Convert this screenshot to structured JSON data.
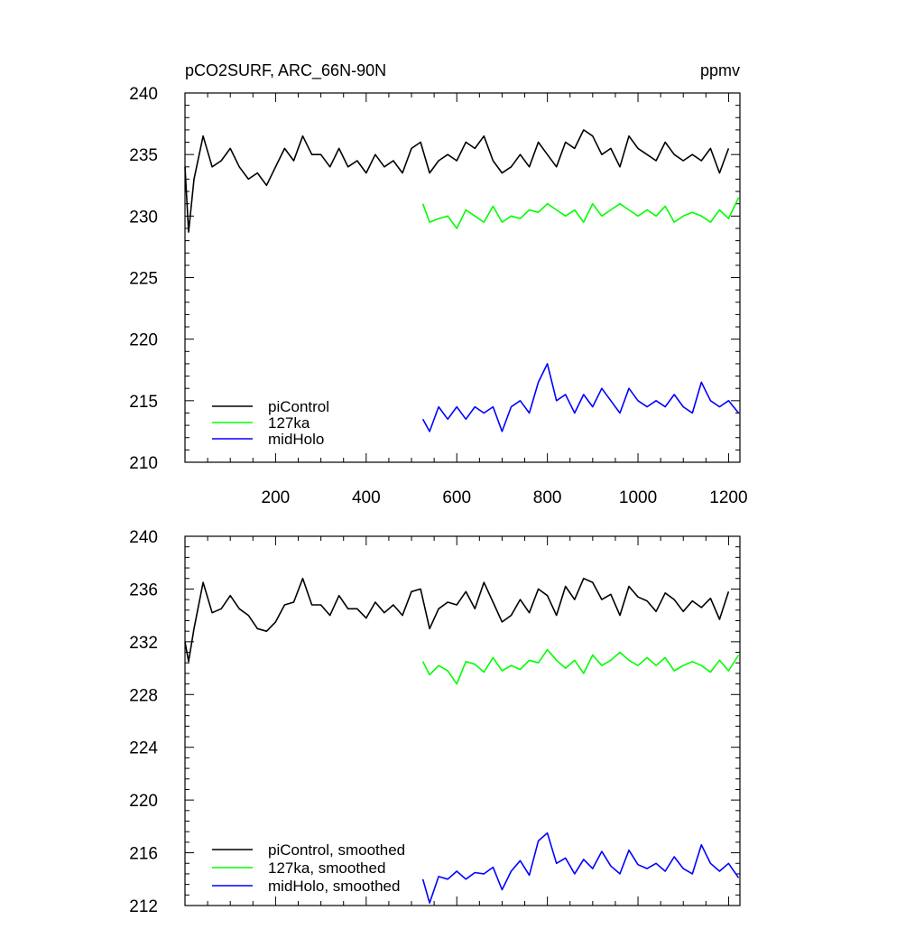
{
  "chart_data": [
    {
      "type": "line",
      "title": "pCO2SURF, ARC_66N-90N",
      "units": "ppmv",
      "xlim": [
        0,
        1225
      ],
      "ylim": [
        210,
        240
      ],
      "xticks": [
        200,
        400,
        600,
        800,
        1000,
        1200
      ],
      "xticklabels": [
        "200",
        "400",
        "600",
        "800",
        "1000",
        "1200"
      ],
      "yticks": [
        210,
        215,
        220,
        225,
        230,
        235,
        240
      ],
      "yticklabels": [
        "210",
        "215",
        "220",
        "225",
        "230",
        "235",
        "240"
      ],
      "legend_position": "bottom-left",
      "series": [
        {
          "name": "piControl",
          "color": "#000000",
          "x": [
            0,
            8,
            20,
            40,
            60,
            80,
            100,
            120,
            140,
            160,
            180,
            200,
            220,
            240,
            260,
            280,
            300,
            320,
            340,
            360,
            380,
            400,
            420,
            440,
            460,
            480,
            500,
            520,
            540,
            560,
            580,
            600,
            620,
            640,
            660,
            680,
            700,
            720,
            740,
            760,
            780,
            800,
            820,
            840,
            860,
            880,
            900,
            920,
            940,
            960,
            980,
            1000,
            1020,
            1040,
            1060,
            1080,
            1100,
            1120,
            1140,
            1160,
            1180,
            1200
          ],
          "y": [
            234,
            228.7,
            233,
            236.5,
            234,
            234.5,
            235.5,
            234,
            233,
            233.5,
            232.5,
            234,
            235.5,
            234.5,
            236.5,
            235,
            235,
            234,
            235.5,
            234,
            234.5,
            233.5,
            235,
            234,
            234.5,
            233.5,
            235.5,
            236,
            233.5,
            234.5,
            235,
            234.5,
            236,
            235.5,
            236.5,
            234.5,
            233.5,
            234,
            235,
            234,
            236,
            235,
            234,
            236,
            235.5,
            237,
            236.5,
            235,
            235.5,
            234,
            236.5,
            235.5,
            235,
            234.5,
            236,
            235,
            234.5,
            235,
            234.5,
            235.5,
            233.5,
            235.5
          ]
        },
        {
          "name": "127ka",
          "color": "#00ff00",
          "x": [
            525,
            540,
            560,
            580,
            600,
            620,
            640,
            660,
            680,
            700,
            720,
            740,
            760,
            780,
            800,
            820,
            840,
            860,
            880,
            900,
            920,
            940,
            960,
            980,
            1000,
            1020,
            1040,
            1060,
            1080,
            1100,
            1120,
            1140,
            1160,
            1180,
            1200,
            1222
          ],
          "y": [
            231,
            229.5,
            229.8,
            230,
            229,
            230.5,
            230,
            229.5,
            230.8,
            229.5,
            230,
            229.8,
            230.5,
            230.3,
            231,
            230.5,
            230,
            230.5,
            229.5,
            231,
            230,
            230.5,
            231,
            230.5,
            230,
            230.5,
            230,
            230.8,
            229.5,
            230,
            230.3,
            230,
            229.5,
            230.5,
            229.8,
            231.5
          ]
        },
        {
          "name": "midHolo",
          "color": "#0000ff",
          "x": [
            525,
            540,
            560,
            580,
            600,
            620,
            640,
            660,
            680,
            700,
            720,
            740,
            760,
            780,
            800,
            820,
            840,
            860,
            880,
            900,
            920,
            940,
            960,
            980,
            1000,
            1020,
            1040,
            1060,
            1080,
            1100,
            1120,
            1140,
            1160,
            1180,
            1200,
            1222
          ],
          "y": [
            213.5,
            212.5,
            214.5,
            213.5,
            214.5,
            213.5,
            214.5,
            214,
            214.5,
            212.5,
            214.5,
            215,
            214,
            216.5,
            218,
            215,
            215.5,
            214,
            215.5,
            214.5,
            216,
            215,
            214,
            216,
            215,
            214.5,
            215,
            214.5,
            215.5,
            214.5,
            214,
            216.5,
            215,
            214.5,
            215,
            214
          ]
        }
      ]
    },
    {
      "type": "line",
      "xlim": [
        0,
        1225
      ],
      "ylim": [
        212,
        240
      ],
      "yticks": [
        212,
        216,
        220,
        224,
        228,
        232,
        236,
        240
      ],
      "yticklabels": [
        "212",
        "216",
        "220",
        "224",
        "228",
        "232",
        "236",
        "240"
      ],
      "legend_position": "bottom-left",
      "series": [
        {
          "name": "piControl, smoothed",
          "color": "#000000",
          "x": [
            0,
            8,
            20,
            40,
            60,
            80,
            100,
            120,
            140,
            160,
            180,
            200,
            220,
            240,
            260,
            280,
            300,
            320,
            340,
            360,
            380,
            400,
            420,
            440,
            460,
            480,
            500,
            520,
            540,
            560,
            580,
            600,
            620,
            640,
            660,
            680,
            700,
            720,
            740,
            760,
            780,
            800,
            820,
            840,
            860,
            880,
            900,
            920,
            940,
            960,
            980,
            1000,
            1020,
            1040,
            1060,
            1080,
            1100,
            1120,
            1140,
            1160,
            1180,
            1200
          ],
          "y": [
            232,
            230.5,
            233,
            236.5,
            234.2,
            234.5,
            235.5,
            234.5,
            234,
            233,
            232.8,
            233.5,
            234.8,
            235,
            236.8,
            234.8,
            234.8,
            234,
            235.5,
            234.5,
            234.5,
            233.8,
            235,
            234.2,
            234.8,
            234,
            235.8,
            236,
            233,
            234.5,
            235,
            234.8,
            235.8,
            234.5,
            236.5,
            235,
            233.5,
            234,
            235.2,
            234.2,
            236,
            235.5,
            234,
            236.2,
            235.2,
            236.8,
            236.5,
            235.2,
            235.6,
            234,
            236.2,
            235.4,
            235.1,
            234.3,
            235.7,
            235.2,
            234.3,
            235.1,
            234.6,
            235.3,
            233.7,
            235.8
          ]
        },
        {
          "name": "127ka, smoothed",
          "color": "#00ff00",
          "x": [
            525,
            540,
            560,
            580,
            600,
            620,
            640,
            660,
            680,
            700,
            720,
            740,
            760,
            780,
            800,
            820,
            840,
            860,
            880,
            900,
            920,
            940,
            960,
            980,
            1000,
            1020,
            1040,
            1060,
            1080,
            1100,
            1120,
            1140,
            1160,
            1180,
            1200,
            1222
          ],
          "y": [
            230.5,
            229.5,
            230.2,
            229.8,
            228.8,
            230.5,
            230.3,
            229.7,
            230.8,
            229.8,
            230.2,
            229.9,
            230.6,
            230.4,
            231.4,
            230.6,
            230,
            230.6,
            229.6,
            231,
            230.2,
            230.6,
            231.2,
            230.6,
            230.2,
            230.8,
            230.2,
            230.8,
            229.8,
            230.2,
            230.5,
            230.2,
            229.7,
            230.6,
            229.8,
            231
          ]
        },
        {
          "name": "midHolo, smoothed",
          "color": "#0000ff",
          "x": [
            525,
            540,
            560,
            580,
            600,
            620,
            640,
            660,
            680,
            700,
            720,
            740,
            760,
            780,
            800,
            820,
            840,
            860,
            880,
            900,
            920,
            940,
            960,
            980,
            1000,
            1020,
            1040,
            1060,
            1080,
            1100,
            1120,
            1140,
            1160,
            1180,
            1200,
            1222
          ],
          "y": [
            214,
            212.2,
            214.2,
            214,
            214.6,
            214,
            214.5,
            214.4,
            214.9,
            213.2,
            214.6,
            215.4,
            214.3,
            216.9,
            217.5,
            215.2,
            215.6,
            214.4,
            215.5,
            214.8,
            216.1,
            215,
            214.4,
            216.2,
            215.1,
            214.8,
            215.2,
            214.6,
            215.7,
            214.8,
            214.4,
            216.6,
            215.2,
            214.6,
            215.2,
            214.1
          ]
        }
      ]
    }
  ]
}
